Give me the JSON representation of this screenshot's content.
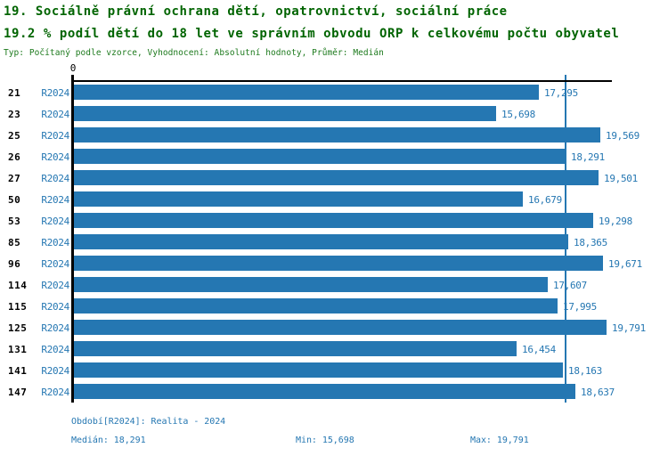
{
  "header": {
    "title": "19. Sociálně právní ochrana dětí, opatrovnictví, sociální práce",
    "subtitle": "19.2 % podíl dětí do 18 let ve správním obvodu ORP k celkovému počtu obyvatel",
    "meta": "Typ: Počítaný podle vzorce, Vyhodnocení: Absolutní hodnoty, Průměr: Medián"
  },
  "chart_data": {
    "type": "bar",
    "orientation": "horizontal",
    "categories": [
      "21",
      "23",
      "25",
      "26",
      "27",
      "50",
      "53",
      "85",
      "96",
      "114",
      "115",
      "125",
      "131",
      "141",
      "147"
    ],
    "series_label": "R2024",
    "values": [
      17295,
      15698,
      19569,
      18291,
      19501,
      16679,
      19298,
      18365,
      19671,
      17607,
      17995,
      19791,
      16454,
      18163,
      18637
    ],
    "value_labels": [
      "17,295",
      "15,698",
      "19,569",
      "18,291",
      "19,501",
      "16,679",
      "19,298",
      "18,365",
      "19,671",
      "17,607",
      "17,995",
      "19,791",
      "16,454",
      "18,163",
      "18,637"
    ],
    "xlim": [
      0,
      20000
    ],
    "origin_label": "0",
    "median_value": 18291,
    "grid": false,
    "legend": "none",
    "bar_color": "#2577b2",
    "median_line_color": "#2577b2",
    "axis_color": "#000000"
  },
  "footer": {
    "period": "Období[R2024]: Realita - 2024",
    "median": "Medián: 18,291",
    "min": "Min: 15,698",
    "max": "Max: 19,791"
  },
  "colors": {
    "title_green": "#006400",
    "meta_green": "#1d7a1d",
    "blue": "#2577b2"
  }
}
